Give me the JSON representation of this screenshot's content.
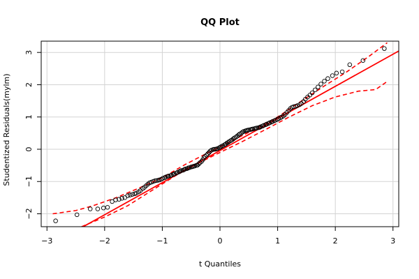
{
  "chart_data": {
    "type": "scatter",
    "title": "QQ Plot",
    "xlabel": "t Quantiles",
    "ylabel": "Studentized Residuals(mylm)",
    "xlim": [
      -3.1,
      3.1
    ],
    "ylim": [
      -2.4,
      3.35
    ],
    "x_ticks": [
      -3,
      -2,
      -1,
      0,
      1,
      2,
      3
    ],
    "y_ticks": [
      -2,
      -1,
      0,
      1,
      2,
      3
    ],
    "x_tick_labels": [
      "−3",
      "−2",
      "−1",
      "0",
      "1",
      "2",
      "3"
    ],
    "y_tick_labels": [
      "−2",
      "−1",
      "0",
      "1",
      "2",
      "3"
    ],
    "grid": true,
    "reference_line": {
      "slope": 0.995,
      "intercept": -0.04,
      "color": "#ff0000"
    },
    "envelope": {
      "color": "#ff0000",
      "style": "dashed",
      "upper": [
        [
          -2.9,
          -2.0
        ],
        [
          -2.5,
          -1.9
        ],
        [
          -2.2,
          -1.75
        ],
        [
          -1.8,
          -1.5
        ],
        [
          -1.4,
          -1.2
        ],
        [
          -1.0,
          -0.88
        ],
        [
          -0.6,
          -0.47
        ],
        [
          -0.2,
          -0.1
        ],
        [
          0.2,
          0.25
        ],
        [
          0.6,
          0.62
        ],
        [
          1.0,
          1.0
        ],
        [
          1.4,
          1.48
        ],
        [
          1.8,
          1.95
        ],
        [
          2.2,
          2.4
        ],
        [
          2.6,
          2.9
        ],
        [
          2.9,
          3.3
        ]
      ],
      "lower": [
        [
          -2.4,
          -2.4
        ],
        [
          -2.0,
          -2.1
        ],
        [
          -1.6,
          -1.75
        ],
        [
          -1.2,
          -1.3
        ],
        [
          -0.8,
          -0.85
        ],
        [
          -0.4,
          -0.45
        ],
        [
          0.0,
          -0.1
        ],
        [
          0.4,
          0.25
        ],
        [
          0.8,
          0.62
        ],
        [
          1.2,
          1.0
        ],
        [
          1.6,
          1.35
        ],
        [
          2.0,
          1.62
        ],
        [
          2.4,
          1.8
        ],
        [
          2.7,
          1.85
        ],
        [
          2.9,
          2.1
        ]
      ]
    },
    "points": {
      "marker": "open-circle",
      "x": [
        -2.85,
        -2.48,
        -2.25,
        -2.12,
        -2.02,
        -1.95,
        -1.87,
        -1.81,
        -1.75,
        -1.7,
        -1.65,
        -1.6,
        -1.56,
        -1.52,
        -1.48,
        -1.45,
        -1.41,
        -1.38,
        -1.34,
        -1.31,
        -1.28,
        -1.25,
        -1.22,
        -1.19,
        -1.16,
        -1.13,
        -1.1,
        -1.07,
        -1.05,
        -1.02,
        -0.99,
        -0.96,
        -0.94,
        -0.91,
        -0.89,
        -0.86,
        -0.84,
        -0.81,
        -0.79,
        -0.76,
        -0.74,
        -0.71,
        -0.69,
        -0.67,
        -0.64,
        -0.62,
        -0.6,
        -0.57,
        -0.55,
        -0.53,
        -0.5,
        -0.48,
        -0.46,
        -0.44,
        -0.41,
        -0.39,
        -0.37,
        -0.35,
        -0.32,
        -0.3,
        -0.28,
        -0.26,
        -0.23,
        -0.21,
        -0.19,
        -0.17,
        -0.15,
        -0.12,
        -0.1,
        -0.08,
        -0.06,
        -0.04,
        -0.01,
        0.01,
        0.03,
        0.05,
        0.08,
        0.1,
        0.12,
        0.14,
        0.16,
        0.19,
        0.21,
        0.23,
        0.25,
        0.28,
        0.3,
        0.32,
        0.34,
        0.37,
        0.39,
        0.41,
        0.44,
        0.46,
        0.48,
        0.5,
        0.53,
        0.55,
        0.57,
        0.6,
        0.62,
        0.64,
        0.67,
        0.69,
        0.71,
        0.74,
        0.76,
        0.79,
        0.81,
        0.84,
        0.86,
        0.89,
        0.91,
        0.94,
        0.96,
        0.99,
        1.02,
        1.05,
        1.07,
        1.1,
        1.13,
        1.16,
        1.19,
        1.22,
        1.25,
        1.28,
        1.31,
        1.34,
        1.38,
        1.41,
        1.45,
        1.48,
        1.52,
        1.56,
        1.6,
        1.65,
        1.7,
        1.75,
        1.81,
        1.87,
        1.95,
        2.02,
        2.12,
        2.25,
        2.48,
        2.85
      ],
      "y": [
        -2.22,
        -2.03,
        -1.85,
        -1.85,
        -1.82,
        -1.8,
        -1.62,
        -1.57,
        -1.55,
        -1.52,
        -1.5,
        -1.44,
        -1.42,
        -1.4,
        -1.38,
        -1.36,
        -1.32,
        -1.28,
        -1.22,
        -1.18,
        -1.13,
        -1.08,
        -1.04,
        -1.02,
        -1.0,
        -0.98,
        -0.97,
        -0.96,
        -0.95,
        -0.93,
        -0.9,
        -0.88,
        -0.86,
        -0.84,
        -0.83,
        -0.82,
        -0.8,
        -0.78,
        -0.76,
        -0.74,
        -0.72,
        -0.7,
        -0.68,
        -0.66,
        -0.65,
        -0.63,
        -0.61,
        -0.6,
        -0.58,
        -0.57,
        -0.55,
        -0.54,
        -0.53,
        -0.52,
        -0.5,
        -0.49,
        -0.46,
        -0.42,
        -0.38,
        -0.33,
        -0.27,
        -0.22,
        -0.18,
        -0.14,
        -0.1,
        -0.06,
        -0.03,
        -0.01,
        0.0,
        0.0,
        0.01,
        0.02,
        0.05,
        0.07,
        0.09,
        0.11,
        0.14,
        0.16,
        0.19,
        0.21,
        0.24,
        0.27,
        0.29,
        0.32,
        0.35,
        0.38,
        0.41,
        0.44,
        0.47,
        0.5,
        0.53,
        0.55,
        0.57,
        0.58,
        0.59,
        0.6,
        0.61,
        0.62,
        0.63,
        0.64,
        0.65,
        0.66,
        0.67,
        0.68,
        0.7,
        0.72,
        0.74,
        0.76,
        0.78,
        0.8,
        0.82,
        0.84,
        0.86,
        0.88,
        0.9,
        0.92,
        0.95,
        0.98,
        1.0,
        1.03,
        1.08,
        1.14,
        1.2,
        1.26,
        1.3,
        1.32,
        1.33,
        1.35,
        1.38,
        1.42,
        1.48,
        1.55,
        1.62,
        1.68,
        1.75,
        1.84,
        1.93,
        2.02,
        2.11,
        2.19,
        2.28,
        2.36,
        2.4,
        2.62,
        2.75,
        3.12
      ]
    },
    "colors": {
      "points": "#000000",
      "line": "#ff0000",
      "grid": "#d3d3d3"
    }
  }
}
